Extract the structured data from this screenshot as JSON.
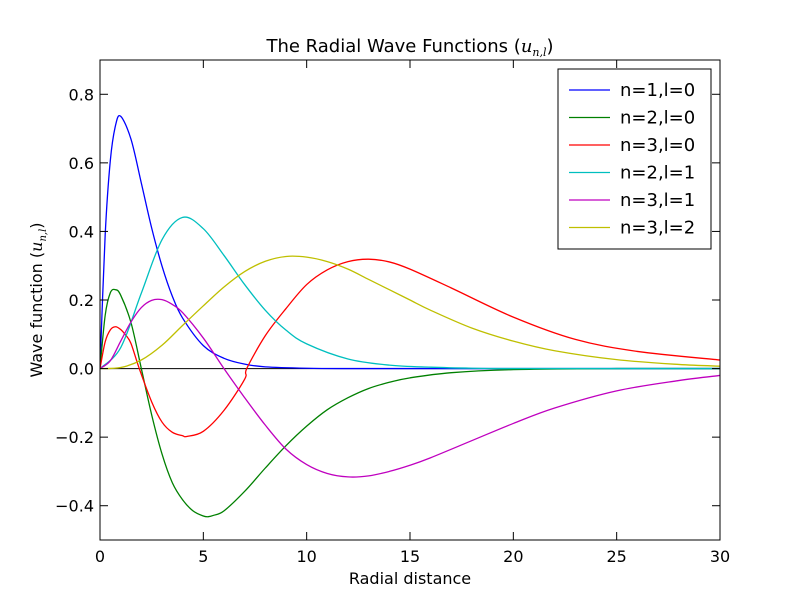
{
  "chart_data": {
    "type": "line",
    "title": "The Radial Wave Functions (u_{n,l})",
    "title_text": "The Radial Wave Functions",
    "title_math": {
      "base": "u",
      "sub": "n,l"
    },
    "xlabel": "Radial distance",
    "ylabel": "Wave function",
    "ylabel_math": {
      "base": "u",
      "sub": "n,l"
    },
    "xlim": [
      0,
      30
    ],
    "ylim": [
      -0.5,
      0.9
    ],
    "xticks": [
      0,
      5,
      10,
      15,
      20,
      25,
      30
    ],
    "xtick_labels": [
      "0",
      "5",
      "10",
      "15",
      "20",
      "25",
      "30"
    ],
    "yticks": [
      -0.4,
      -0.2,
      0.0,
      0.2,
      0.4,
      0.6,
      0.8
    ],
    "ytick_labels": [
      "−0.4",
      "−0.2",
      "0.0",
      "0.2",
      "0.4",
      "0.6",
      "0.8"
    ],
    "grid": false,
    "zero_line": true,
    "legend_position": "top-right",
    "series": [
      {
        "name": "n=1,l=0",
        "color": "#0000ff",
        "x": [
          0,
          0.25,
          0.5,
          0.75,
          1,
          1.5,
          2,
          2.5,
          3,
          3.5,
          4,
          5,
          6,
          7,
          8,
          10,
          12,
          15,
          20,
          25,
          30
        ],
        "y": [
          0,
          0.389,
          0.607,
          0.709,
          0.736,
          0.669,
          0.541,
          0.41,
          0.299,
          0.211,
          0.147,
          0.067,
          0.03,
          0.013,
          0.005,
          0.001,
          0,
          0,
          0,
          0,
          0
        ]
      },
      {
        "name": "n=2,l=0",
        "color": "#008000",
        "x": [
          0,
          0.25,
          0.5,
          0.75,
          1,
          1.5,
          2,
          2.5,
          3,
          3.5,
          4,
          4.5,
          5,
          5.24,
          5.5,
          6,
          7,
          8,
          9,
          10,
          11,
          12,
          13,
          14,
          15,
          17,
          20,
          25,
          30
        ],
        "y": [
          0,
          0.155,
          0.221,
          0.23,
          0.214,
          0.134,
          0,
          -0.135,
          -0.249,
          -0.333,
          -0.383,
          -0.415,
          -0.43,
          -0.432,
          -0.428,
          -0.415,
          -0.358,
          -0.29,
          -0.225,
          -0.168,
          -0.12,
          -0.085,
          -0.058,
          -0.04,
          -0.027,
          -0.012,
          -0.003,
          0,
          0
        ]
      },
      {
        "name": "n=3,l=0",
        "color": "#ff0000",
        "x": [
          0,
          0.25,
          0.5,
          0.75,
          1,
          1.25,
          1.5,
          1.9,
          2.5,
          3,
          3.5,
          4,
          4.2,
          5,
          6,
          7,
          7.1,
          8,
          9,
          10,
          11,
          12,
          13,
          14,
          15,
          17,
          20,
          23,
          26,
          30
        ],
        "y": [
          0,
          0.078,
          0.113,
          0.122,
          0.114,
          0.097,
          0.073,
          0,
          -0.097,
          -0.156,
          -0.186,
          -0.196,
          -0.198,
          -0.183,
          -0.122,
          -0.031,
          0,
          0.096,
          0.175,
          0.245,
          0.288,
          0.312,
          0.319,
          0.311,
          0.29,
          0.235,
          0.15,
          0.085,
          0.05,
          0.025
        ]
      },
      {
        "name": "n=2,l=1",
        "color": "#00bfbf",
        "x": [
          0,
          1,
          2,
          3,
          4,
          5,
          6,
          7,
          8,
          9,
          10,
          12,
          14,
          16,
          18,
          20,
          25,
          30
        ],
        "y": [
          0,
          0.061,
          0.22,
          0.376,
          0.441,
          0.408,
          0.33,
          0.245,
          0.17,
          0.112,
          0.072,
          0.028,
          0.01,
          0.004,
          0.001,
          0,
          0,
          0
        ]
      },
      {
        "name": "n=3,l=1",
        "color": "#bf00bf",
        "x": [
          0,
          0.5,
          1,
          1.5,
          2,
          2.5,
          3,
          3.5,
          4,
          5,
          6,
          7,
          8,
          9,
          10,
          11,
          12,
          13,
          14,
          15,
          16,
          18,
          20,
          22,
          25,
          28,
          30
        ],
        "y": [
          0,
          0.023,
          0.08,
          0.136,
          0.178,
          0.199,
          0.201,
          0.187,
          0.163,
          0.089,
          0,
          -0.085,
          -0.165,
          -0.235,
          -0.28,
          -0.306,
          -0.316,
          -0.313,
          -0.3,
          -0.282,
          -0.26,
          -0.21,
          -0.16,
          -0.115,
          -0.065,
          -0.035,
          -0.02
        ]
      },
      {
        "name": "n=3,l=2",
        "color": "#bfbf00",
        "x": [
          0,
          1,
          2,
          3,
          4,
          5,
          6,
          7,
          8,
          9,
          10,
          11,
          12,
          13,
          14,
          15,
          16,
          18,
          20,
          22,
          25,
          28,
          30
        ],
        "y": [
          0,
          0.003,
          0.025,
          0.068,
          0.126,
          0.183,
          0.238,
          0.283,
          0.313,
          0.327,
          0.325,
          0.312,
          0.29,
          0.26,
          0.23,
          0.2,
          0.17,
          0.118,
          0.08,
          0.052,
          0.026,
          0.012,
          0.007
        ]
      }
    ]
  }
}
